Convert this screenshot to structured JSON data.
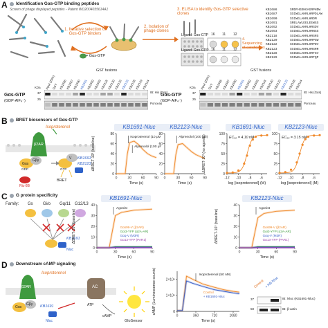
{
  "panelA": {
    "letter": "A",
    "tag": "Identification Gαs-GTP binding peptides",
    "subtitle": "Screen of phage displayed peptides - Patent WO2004035614A1",
    "step1": "1. Iterative selection of Gαs-GTP binders",
    "step2": "2. Isolation of phage clones",
    "step3": "3. ELISA to identify Gαs-GTP selective clones",
    "step4": "4. Sequencing of candidates",
    "legend_gas": "= Gαs-GTP",
    "ligand_gtp": "Ligand: Gαs-GTP",
    "ligand_gdp": "Ligand: Gαs-GDP",
    "wells_top": [
      "16",
      "11",
      "12"
    ],
    "wells_bottom": [
      "16",
      "11",
      "12"
    ],
    "sequences": [
      {
        "id": "KB1686",
        "seq": "SRDFHGDHGAGRPHDW"
      },
      {
        "id": "KB1687",
        "seq": "SSIWGLAHRLHRPDLAW"
      },
      {
        "id": "KB1690",
        "seq": "SSIWGLAHRLHRDM"
      },
      {
        "id": "KB1691",
        "seq": "SRELAWLEELEEWGS"
      },
      {
        "id": "KB1692",
        "seq": "SSIWGLAHRLHRSDV"
      },
      {
        "id": "KB1693",
        "seq": "SSIWGLAHRLHRNSS"
      },
      {
        "id": "KB2118",
        "seq": "SSIWGLAHRLHRSRS"
      },
      {
        "id": "KB2120",
        "seq": "SSIWGLAHRLHRPGW"
      },
      {
        "id": "KB2122",
        "seq": "SSIWGLAHRLHRPDV"
      },
      {
        "id": "KB2123",
        "seq": "SSIWGLAHRLHRSRR"
      },
      {
        "id": "KB2128",
        "seq": "SSIWGLAHRLHRTGV"
      },
      {
        "id": "KB2129",
        "seq": "SSIWGLAHRLHRTQP"
      }
    ],
    "blots": [
      {
        "title": "GST fusions",
        "side_label_1": "Gαs-GTP",
        "side_label_2": "(GDP·AlF₄⁻)",
        "lanes": [
          "Input (20%)",
          "GST",
          "KB1686",
          "KB1687",
          "KB1690",
          "KB1691",
          "KB1692",
          "KB1693",
          "KB2118",
          "KB2120",
          "KB2122",
          "KB2123",
          "KB2128",
          "KB2129",
          "KB2114"
        ],
        "kda": [
          "37",
          "25"
        ],
        "kda_header": "KDa",
        "right_labels": [
          "IB: His (Gαs)",
          "Ponceau"
        ]
      },
      {
        "title": "GST fusions",
        "side_label_1": "Gαs-GTP",
        "side_label_2": "(GDP·AlF₄⁻)",
        "lanes": [
          "Input (20%)",
          "GST",
          "KB1686",
          "KB1687",
          "KB1690",
          "KB1691",
          "KB1692",
          "KB1693",
          "KB2118",
          "KB2120",
          "KB2122",
          "KB2123",
          "KB2128",
          "KB2114"
        ],
        "kda": [
          "37",
          "25"
        ],
        "kda_header": "KDa",
        "right_labels": [
          "IB: His (Gαs)",
          "Ponceau"
        ]
      }
    ]
  },
  "panelB": {
    "letter": "B",
    "tag": "BRET biosensors of Gαs-GTP",
    "diagram_labels": {
      "agonist": "Isoproterenol",
      "receptor": "β2AR",
      "gas": "Gαs",
      "gbg": "Gβγ",
      "gdp": "GDP",
      "gtp": "GTP",
      "venus": "V",
      "rluc": "Ric-8B",
      "kb1": "KB1691",
      "kb2": "KB2123",
      "nluc": "Nluc",
      "bret": "BRET"
    },
    "ylabel_time": "ΔBRET·10³ (baseline)",
    "ylabel_dose": "ΔBRET·10³ (no agonist)"
  },
  "panelC": {
    "letter": "C",
    "tag": "G protein specificity",
    "family_label": "Family:",
    "families": [
      "Gs",
      "Gi/o",
      "Gq/11",
      "G12/13"
    ],
    "sensor_label": "KB1691",
    "nluc": "Nluc",
    "ylabel": "ΔBRET·10³ (baseline)"
  },
  "panelD": {
    "letter": "D",
    "tag": "Downstream cAMP signaling",
    "diagram_labels": {
      "agonist": "Isoproterenol",
      "receptor": "β2AR",
      "ac": "AC",
      "atp": "ATP",
      "camp": "cAMP",
      "glosensor": "GloSensor",
      "kb": "KB1691",
      "nluc": "Nluc",
      "gas": "Gαs",
      "gbg": "Gβγ"
    },
    "ylabel": "cAMP (Luminescence counts)",
    "blot_lanes": [
      "Control",
      "+ KB-Nluc"
    ],
    "blot_labels": [
      "IB: Nluc (KB1691-Nluc)",
      "IB: β-actin"
    ],
    "kda": [
      "37",
      "50"
    ]
  },
  "chart_data": [
    {
      "type": "line",
      "title": "KB1691-Nluc",
      "xlabel": "Time (s)",
      "ylabel": "ΔBRET·10³ (baseline)",
      "xlim": [
        0,
        90
      ],
      "ylim": [
        0,
        80
      ],
      "xticks": [
        0,
        30,
        60,
        90
      ],
      "yticks": [
        0,
        20,
        40,
        60,
        80
      ],
      "annotations": [
        "Isoproterenol (10 μM)",
        "Alprenolol (100 μM)"
      ],
      "series": [
        {
          "x": [
            0,
            10,
            20,
            25,
            30,
            40,
            50,
            60,
            70,
            80,
            90
          ],
          "y": [
            0,
            0,
            0,
            40,
            62,
            65,
            58,
            48,
            40,
            35,
            32
          ]
        }
      ]
    },
    {
      "type": "line",
      "title": "KB2123-Nluc",
      "xlabel": "Time (s)",
      "ylabel": "",
      "xlim": [
        0,
        90
      ],
      "ylim": [
        0,
        80
      ],
      "xticks": [
        0,
        30,
        60,
        90
      ],
      "yticks": [
        0,
        20,
        40,
        60,
        80
      ],
      "annotations": [
        "Alprenolol (100 μM)"
      ],
      "series": [
        {
          "x": [
            0,
            10,
            20,
            25,
            30,
            40,
            50,
            60,
            70,
            80,
            90
          ],
          "y": [
            0,
            0,
            0,
            38,
            58,
            60,
            52,
            44,
            38,
            34,
            30
          ]
        }
      ]
    },
    {
      "type": "scatter",
      "title": "KB1691-Nluc",
      "annotation": "EC₅₀ = 4.10 nM",
      "xlabel": "log [isoproterenol] (M)",
      "ylabel": "ΔBRET·10³ (no agonist)",
      "xlim": [
        -12,
        -5
      ],
      "ylim": [
        0,
        100
      ],
      "xticks": [
        -12,
        -10,
        -8,
        -6
      ],
      "yticks": [
        0,
        25,
        50,
        75,
        100
      ],
      "series": [
        {
          "x": [
            -12,
            -11,
            -10,
            -9,
            -8.5,
            -8,
            -7.5,
            -7,
            -6,
            -5
          ],
          "y": [
            2,
            3,
            8,
            25,
            45,
            70,
            85,
            92,
            95,
            96
          ]
        }
      ]
    },
    {
      "type": "scatter",
      "title": "KB2123-Nluc",
      "annotation": "EC₅₀ = 3.15 nM",
      "xlabel": "log [isoproterenol] (M)",
      "ylabel": "",
      "xlim": [
        -12,
        -5
      ],
      "ylim": [
        0,
        100
      ],
      "xticks": [
        -12,
        -10,
        -8,
        -6
      ],
      "yticks": [
        0,
        25,
        50,
        75,
        100
      ],
      "series": [
        {
          "x": [
            -12,
            -11,
            -10,
            -9,
            -8.5,
            -8,
            -7.5,
            -7,
            -6,
            -5
          ],
          "y": [
            2,
            4,
            10,
            28,
            50,
            72,
            86,
            92,
            95,
            96
          ]
        }
      ]
    },
    {
      "type": "line",
      "title": "KB1691-Nluc",
      "xlabel": "Time (s)",
      "ylabel": "ΔBRET·10³ (baseline)",
      "xlim": [
        0,
        90
      ],
      "ylim": [
        0,
        40
      ],
      "xticks": [
        0,
        30,
        60,
        90
      ],
      "yticks": [
        0,
        10,
        20,
        30,
        40
      ],
      "annotations": [
        "Agonist"
      ],
      "legend": [
        "Gαs99-V (β2AR)",
        "Gαi3-YFP (α2A-AR)",
        "Gαq-V (M3R)",
        "Gα13-YFP (PAR1)"
      ],
      "series": [
        {
          "name": "Gαs99-V (β2AR)",
          "color": "#f08a2c",
          "x": [
            0,
            20,
            30,
            40,
            60,
            90
          ],
          "y": [
            0,
            0,
            30,
            33,
            35,
            36
          ]
        },
        {
          "name": "Gαi3-YFP (α2A-AR)",
          "color": "#3e9b3e",
          "x": [
            0,
            20,
            30,
            60,
            90
          ],
          "y": [
            0,
            0,
            1,
            1,
            1
          ]
        },
        {
          "name": "Gαq-V (M3R)",
          "color": "#3a5fc7",
          "x": [
            0,
            20,
            30,
            60,
            90
          ],
          "y": [
            0,
            0,
            0.5,
            0.5,
            0.5
          ]
        },
        {
          "name": "Gα13-YFP (PAR1)",
          "color": "#9a3fa8",
          "x": [
            0,
            20,
            30,
            60,
            90
          ],
          "y": [
            0,
            0,
            0,
            0,
            0
          ]
        }
      ]
    },
    {
      "type": "line",
      "title": "KB2123-Nluc",
      "xlabel": "Time (s)",
      "ylabel": "ΔBRET·10³ (baseline)",
      "xlim": [
        0,
        90
      ],
      "ylim": [
        0,
        40
      ],
      "xticks": [
        0,
        30,
        60,
        90
      ],
      "yticks": [
        0,
        10,
        20,
        30,
        40
      ],
      "annotations": [
        "Agonist"
      ],
      "legend": [
        "Gαs99-V (β2AR)",
        "Gαi3-YFP (α2A-AR)",
        "Gαq-V (M3R)",
        "Gα13-YFP (PAR1)"
      ],
      "series": [
        {
          "name": "Gαs99-V (β2AR)",
          "color": "#f08a2c",
          "x": [
            0,
            20,
            30,
            40,
            60,
            90
          ],
          "y": [
            0,
            0,
            28,
            32,
            34,
            35
          ]
        },
        {
          "name": "Gαi3-YFP (α2A-AR)",
          "color": "#3e9b3e",
          "x": [
            0,
            20,
            30,
            60,
            90
          ],
          "y": [
            0,
            0,
            1,
            1,
            1
          ]
        },
        {
          "name": "Gαq-V (M3R)",
          "color": "#3a5fc7",
          "x": [
            0,
            20,
            30,
            60,
            90
          ],
          "y": [
            0,
            0,
            0.5,
            0.5,
            0.5
          ]
        },
        {
          "name": "Gα13-YFP (PAR1)",
          "color": "#9a3fa8",
          "x": [
            0,
            20,
            30,
            60,
            90
          ],
          "y": [
            0,
            0,
            0,
            0,
            0
          ]
        }
      ]
    },
    {
      "type": "line",
      "title": "",
      "xlabel": "Time (s)",
      "ylabel": "cAMP (Luminescence counts)",
      "xlim": [
        0,
        1200
      ],
      "ylim": [
        0,
        2.5
      ],
      "xticks": [
        0,
        360,
        720,
        1080
      ],
      "yticks": [
        0,
        1,
        2
      ],
      "ytick_labels": [
        "0",
        "1×10⁶",
        "2×10⁶"
      ],
      "annotations": [
        "Isoproterenol (50 nM)"
      ],
      "legend": [
        "Control",
        "+ KB1691-Nluc"
      ],
      "series": [
        {
          "name": "Control",
          "color": "#f08a2c",
          "x": [
            0,
            100,
            180,
            300,
            500,
            720,
            900,
            1080,
            1200
          ],
          "y": [
            0.05,
            0.05,
            2.2,
            2.0,
            1.7,
            1.5,
            1.35,
            1.25,
            1.2
          ]
        },
        {
          "name": "+ KB1691-Nluc",
          "color": "#3a5fc7",
          "x": [
            0,
            100,
            180,
            300,
            500,
            720,
            900,
            1080,
            1200
          ],
          "y": [
            0.05,
            0.05,
            1.9,
            1.75,
            1.55,
            1.35,
            1.25,
            1.15,
            1.1
          ]
        }
      ]
    }
  ]
}
